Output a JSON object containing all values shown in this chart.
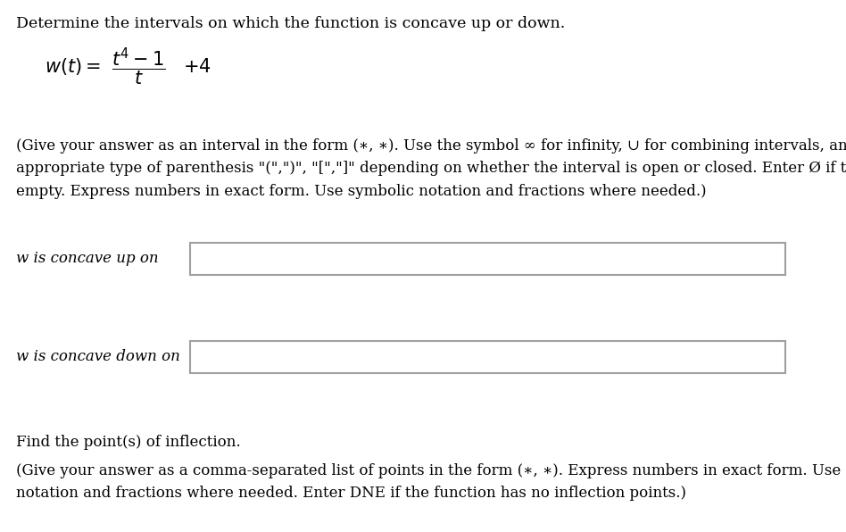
{
  "bg_color": "#ffffff",
  "title_text": "Determine the intervals on which the function is concave up or down.",
  "title_fontsize": 12.5,
  "instruction_text": "(Give your answer as an interval in the form (∗, ∗). Use the symbol ∞ for infinity, ∪ for combining intervals, and an\nappropriate type of parenthesis \"(\",\")\", \"[\",\"]\" depending on whether the interval is open or closed. Enter Ø if the interval is\nempty. Express numbers in exact form. Use symbolic notation and fractions where needed.)",
  "instruction_fontsize": 12.0,
  "label_concave_up": "w is concave up on",
  "label_concave_down": "w is concave down on",
  "label_fontsize": 12.0,
  "box_edgecolor": "#a0a0a0",
  "box_facecolor": "#ffffff",
  "find_inflection_text": "Find the point(s) of inflection.",
  "inflection_instruction": "(Give your answer as a comma-separated list of points in the form (∗, ∗). Express numbers in exact form. Use symbolic\nnotation and fractions where needed. Enter DNE if the function has no inflection points.)",
  "inflection_fontsize": 12.0
}
